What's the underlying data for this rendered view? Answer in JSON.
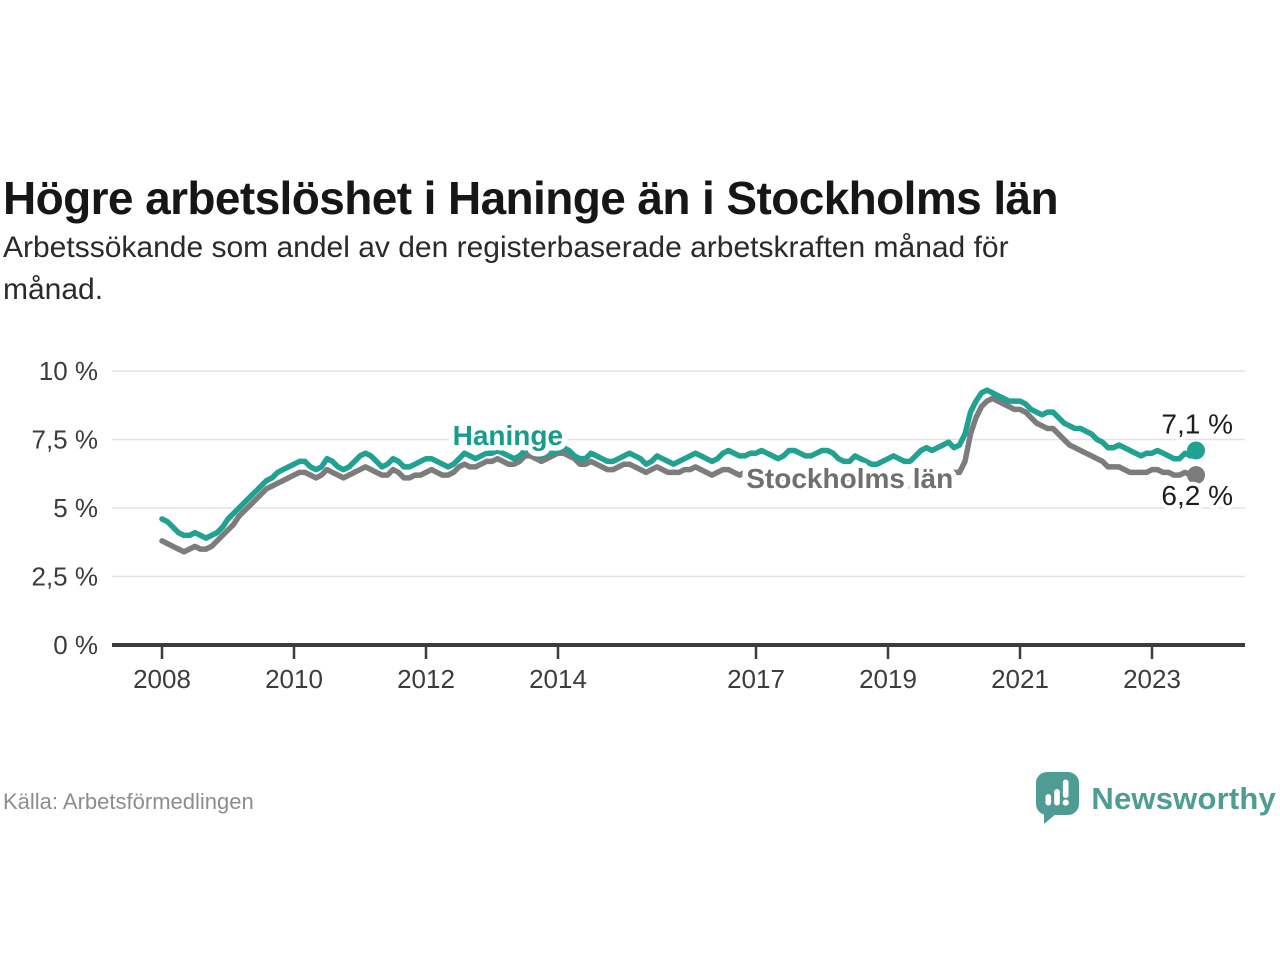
{
  "header": {
    "title": "Högre arbetslöshet i Haninge än i Stockholms län",
    "subtitle_line1": "Arbetssökande som andel av den registerbaserade arbetskraften månad för",
    "subtitle_line2": "månad."
  },
  "footer": {
    "source": "Källa: Arbetsförmedlingen",
    "brand": "Newsworthy",
    "brand_color": "#4E9C94",
    "brand_icon": "newsworthy-speech-bubble-bar-chart-icon"
  },
  "chart_data": {
    "type": "line",
    "unit": "%",
    "grid": true,
    "ylim": [
      0,
      10
    ],
    "x_start_year": 2008,
    "x_frequency": "monthly",
    "yticks": [
      {
        "value": 0,
        "label": "0 %"
      },
      {
        "value": 2.5,
        "label": "2,5 %"
      },
      {
        "value": 5,
        "label": "5 %"
      },
      {
        "value": 7.5,
        "label": "7,5 %"
      },
      {
        "value": 10,
        "label": "10 %"
      }
    ],
    "xticks": [
      {
        "year": 2008,
        "label": "2008"
      },
      {
        "year": 2010,
        "label": "2010"
      },
      {
        "year": 2012,
        "label": "2012"
      },
      {
        "year": 2014,
        "label": "2014"
      },
      {
        "year": 2017,
        "label": "2017"
      },
      {
        "year": 2019,
        "label": "2019"
      },
      {
        "year": 2021,
        "label": "2021"
      },
      {
        "year": 2023,
        "label": "2023"
      }
    ],
    "annotations": [
      {
        "series": "Haninge",
        "text": "Haninge",
        "x_year": 2013.24,
        "y_value": 7.3,
        "color": "#169B8C"
      },
      {
        "series": "Stockholms län",
        "text": "Stockholms län",
        "x_year": 2018.42,
        "y_value": 5.73,
        "color": "#6F6F6F"
      }
    ],
    "series": [
      {
        "name": "Stockholms län",
        "color": "#7C7C7C",
        "end_label": "6,2 %",
        "end_label_position": "below",
        "values": [
          3.8,
          3.7,
          3.6,
          3.5,
          3.4,
          3.5,
          3.6,
          3.5,
          3.5,
          3.6,
          3.8,
          4.0,
          4.2,
          4.4,
          4.7,
          4.9,
          5.1,
          5.3,
          5.5,
          5.7,
          5.8,
          5.9,
          6.0,
          6.1,
          6.2,
          6.3,
          6.3,
          6.2,
          6.1,
          6.2,
          6.4,
          6.3,
          6.2,
          6.1,
          6.2,
          6.3,
          6.4,
          6.5,
          6.4,
          6.3,
          6.2,
          6.2,
          6.4,
          6.3,
          6.1,
          6.1,
          6.2,
          6.2,
          6.3,
          6.4,
          6.3,
          6.2,
          6.2,
          6.3,
          6.5,
          6.6,
          6.5,
          6.5,
          6.6,
          6.7,
          6.7,
          6.8,
          6.7,
          6.6,
          6.6,
          6.7,
          6.9,
          6.9,
          6.8,
          6.7,
          6.8,
          6.9,
          7.0,
          7.0,
          6.9,
          6.8,
          6.6,
          6.6,
          6.7,
          6.6,
          6.5,
          6.4,
          6.4,
          6.5,
          6.6,
          6.6,
          6.5,
          6.4,
          6.3,
          6.4,
          6.5,
          6.4,
          6.3,
          6.3,
          6.3,
          6.4,
          6.4,
          6.5,
          6.4,
          6.3,
          6.2,
          6.3,
          6.4,
          6.4,
          6.3,
          6.2,
          6.3,
          6.3,
          6.3,
          6.4,
          6.3,
          6.2,
          6.1,
          6.1,
          6.3,
          6.2,
          6.1,
          6.0,
          6.1,
          6.1,
          6.2,
          6.2,
          6.1,
          6.0,
          5.9,
          5.9,
          6.0,
          6.0,
          5.8,
          5.8,
          5.8,
          5.9,
          6.0,
          6.0,
          5.9,
          5.9,
          5.8,
          6.0,
          6.1,
          6.2,
          6.1,
          6.2,
          6.3,
          6.3,
          6.3,
          6.3,
          6.7,
          7.7,
          8.3,
          8.7,
          8.9,
          9.0,
          8.9,
          8.8,
          8.7,
          8.6,
          8.6,
          8.5,
          8.3,
          8.1,
          8.0,
          7.9,
          7.9,
          7.7,
          7.5,
          7.3,
          7.2,
          7.1,
          7.0,
          6.9,
          6.8,
          6.7,
          6.5,
          6.5,
          6.5,
          6.4,
          6.3,
          6.3,
          6.3,
          6.3,
          6.4,
          6.4,
          6.3,
          6.3,
          6.2,
          6.2,
          6.3,
          6.2,
          6.2
        ]
      },
      {
        "name": "Haninge",
        "color": "#21A191",
        "end_label": "7,1 %",
        "end_label_position": "above",
        "values": [
          4.6,
          4.5,
          4.3,
          4.1,
          4.0,
          4.0,
          4.1,
          4.0,
          3.9,
          4.0,
          4.1,
          4.3,
          4.6,
          4.8,
          5.0,
          5.2,
          5.4,
          5.6,
          5.8,
          6.0,
          6.1,
          6.3,
          6.4,
          6.5,
          6.6,
          6.7,
          6.7,
          6.5,
          6.4,
          6.5,
          6.8,
          6.7,
          6.5,
          6.4,
          6.5,
          6.7,
          6.9,
          7.0,
          6.9,
          6.7,
          6.5,
          6.6,
          6.8,
          6.7,
          6.5,
          6.5,
          6.6,
          6.7,
          6.8,
          6.8,
          6.7,
          6.6,
          6.5,
          6.6,
          6.8,
          7.0,
          6.9,
          6.8,
          6.9,
          7.0,
          7.0,
          7.1,
          7.0,
          6.9,
          6.8,
          6.9,
          7.1,
          7.1,
          7.0,
          6.9,
          7.0,
          7.0,
          7.1,
          7.2,
          7.1,
          6.9,
          6.8,
          6.8,
          7.0,
          6.9,
          6.8,
          6.7,
          6.7,
          6.8,
          6.9,
          7.0,
          6.9,
          6.8,
          6.6,
          6.7,
          6.9,
          6.8,
          6.7,
          6.6,
          6.7,
          6.8,
          6.9,
          7.0,
          6.9,
          6.8,
          6.7,
          6.8,
          7.0,
          7.1,
          7.0,
          6.9,
          6.9,
          7.0,
          7.0,
          7.1,
          7.0,
          6.9,
          6.8,
          6.9,
          7.1,
          7.1,
          7.0,
          6.9,
          6.9,
          7.0,
          7.1,
          7.1,
          7.0,
          6.8,
          6.7,
          6.7,
          6.9,
          6.8,
          6.7,
          6.6,
          6.6,
          6.7,
          6.8,
          6.9,
          6.8,
          6.7,
          6.7,
          6.9,
          7.1,
          7.2,
          7.1,
          7.2,
          7.3,
          7.4,
          7.2,
          7.3,
          7.7,
          8.5,
          8.9,
          9.2,
          9.3,
          9.2,
          9.1,
          9.0,
          8.9,
          8.9,
          8.9,
          8.8,
          8.6,
          8.5,
          8.4,
          8.5,
          8.5,
          8.3,
          8.1,
          8.0,
          7.9,
          7.9,
          7.8,
          7.7,
          7.5,
          7.4,
          7.2,
          7.2,
          7.3,
          7.2,
          7.1,
          7.0,
          6.9,
          7.0,
          7.0,
          7.1,
          7.0,
          6.9,
          6.8,
          6.8,
          7.0,
          6.9,
          7.1
        ]
      }
    ]
  }
}
